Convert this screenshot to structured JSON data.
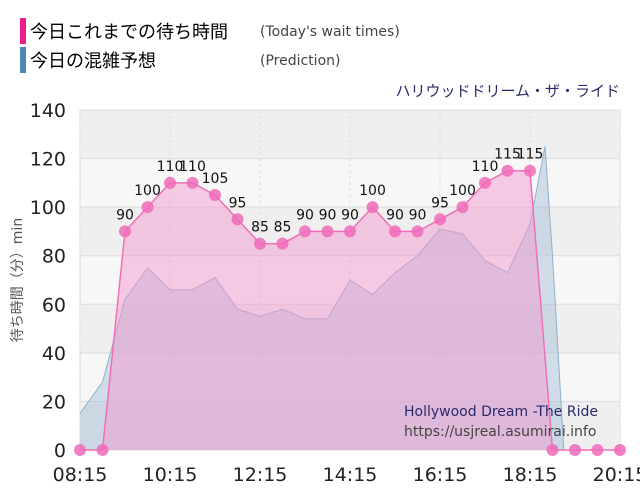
{
  "legend": {
    "today": {
      "label": "今日これまでの待ち時間",
      "sub": "(Today's wait times)",
      "color": "#ee1f8c"
    },
    "prediction": {
      "label": "今日の混雑予想",
      "sub": "(Prediction)",
      "color": "#4f86b8"
    }
  },
  "ride_name_jp": "ハリウッドドリーム・ザ・ライド",
  "watermark": {
    "title": "Hollywood Dream -The Ride",
    "url": "https://usjreal.asumirai.info"
  },
  "chart_data": {
    "type": "area",
    "ylabel": "待ち時間（分）min",
    "ylim": [
      0,
      140
    ],
    "yticks": [
      0,
      20,
      40,
      60,
      80,
      100,
      120,
      140
    ],
    "xlim": [
      "08:15",
      "20:15"
    ],
    "xticks": [
      "08:15",
      "10:15",
      "12:15",
      "14:15",
      "16:15",
      "18:15",
      "20:15"
    ],
    "grid": true,
    "series": [
      {
        "name": "今日これまでの待ち時間",
        "color": "#ee1f8c",
        "labels_shown": true,
        "points": [
          [
            "08:15",
            0
          ],
          [
            "08:45",
            0
          ],
          [
            "09:15",
            90
          ],
          [
            "09:45",
            100
          ],
          [
            "10:15",
            110
          ],
          [
            "10:45",
            110
          ],
          [
            "11:15",
            105
          ],
          [
            "11:45",
            95
          ],
          [
            "12:15",
            85
          ],
          [
            "12:45",
            85
          ],
          [
            "13:15",
            90
          ],
          [
            "13:45",
            90
          ],
          [
            "14:15",
            90
          ],
          [
            "14:45",
            100
          ],
          [
            "15:15",
            90
          ],
          [
            "15:45",
            90
          ],
          [
            "16:15",
            95
          ],
          [
            "16:45",
            100
          ],
          [
            "17:15",
            110
          ],
          [
            "17:45",
            115
          ],
          [
            "18:15",
            115
          ],
          [
            "18:45",
            0
          ],
          [
            "19:15",
            0
          ],
          [
            "19:45",
            0
          ],
          [
            "20:15",
            0
          ]
        ]
      },
      {
        "name": "今日の混雑予想",
        "color": "#4f86b8",
        "labels_shown": false,
        "points": [
          [
            "08:15",
            15
          ],
          [
            "08:45",
            28
          ],
          [
            "09:15",
            62
          ],
          [
            "09:45",
            75
          ],
          [
            "10:15",
            66
          ],
          [
            "10:45",
            66
          ],
          [
            "11:15",
            71
          ],
          [
            "11:45",
            58
          ],
          [
            "12:15",
            55
          ],
          [
            "12:45",
            58
          ],
          [
            "13:15",
            54
          ],
          [
            "13:45",
            54
          ],
          [
            "14:15",
            70
          ],
          [
            "14:45",
            64
          ],
          [
            "15:15",
            73
          ],
          [
            "15:45",
            80
          ],
          [
            "16:15",
            91
          ],
          [
            "16:45",
            89
          ],
          [
            "17:15",
            78
          ],
          [
            "17:45",
            73
          ],
          [
            "18:15",
            93
          ],
          [
            "18:35",
            125
          ],
          [
            "18:45",
            80
          ],
          [
            "19:00",
            0
          ],
          [
            "20:15",
            0
          ]
        ]
      }
    ]
  }
}
